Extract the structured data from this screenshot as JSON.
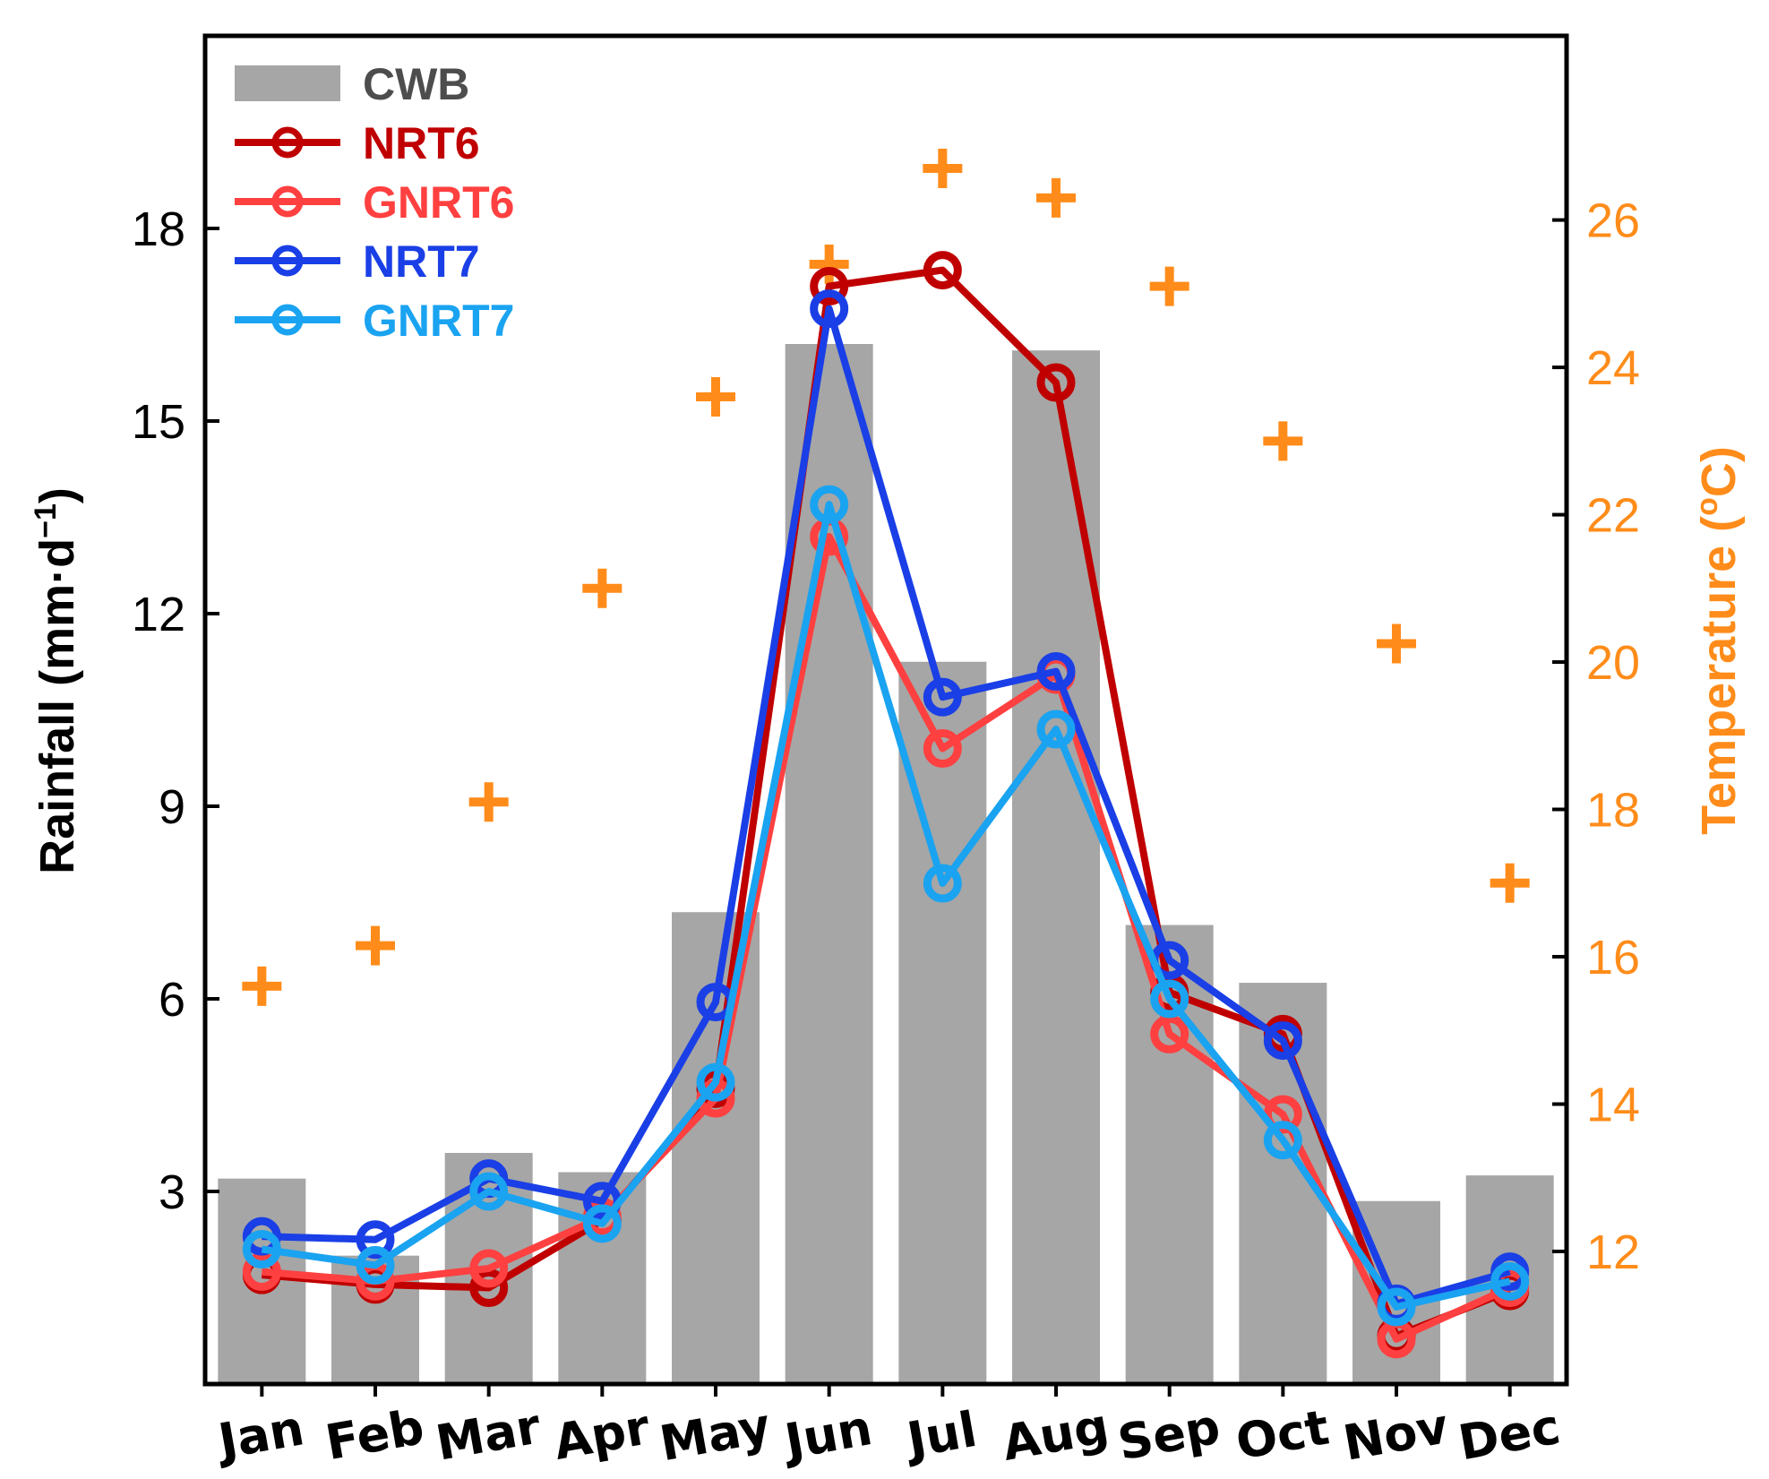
{
  "chart_data": {
    "type": "bar",
    "categories": [
      "Jan",
      "Feb",
      "Mar",
      "Apr",
      "May",
      "Jun",
      "Jul",
      "Aug",
      "Sep",
      "Oct",
      "Nov",
      "Dec"
    ],
    "ylabel": "Rainfall (mm·d",
    "ylabel_sup": "−1",
    "ylabel_close": ")",
    "ylabel_right": "Temperature (",
    "ylabel_right_sup": "o",
    "ylabel_right_close": "C)",
    "ylim": [
      0,
      21
    ],
    "ylim_right": [
      10.2,
      28.5
    ],
    "yticks": [
      3,
      6,
      9,
      12,
      15,
      18
    ],
    "yticks_right": [
      12,
      14,
      16,
      18,
      20,
      22,
      24,
      26
    ],
    "bars": {
      "name": "CWB",
      "color": "#a6a6a6",
      "values": [
        3.2,
        2.0,
        3.6,
        3.3,
        7.35,
        16.2,
        11.25,
        16.1,
        7.15,
        6.25,
        2.85,
        3.25
      ]
    },
    "series": [
      {
        "name": "NRT6",
        "color": "#c00000",
        "values": [
          1.7,
          1.55,
          1.5,
          2.55,
          4.6,
          17.1,
          17.35,
          15.6,
          6.1,
          5.45,
          0.75,
          1.45
        ]
      },
      {
        "name": "GNRT6",
        "color": "#ff4040",
        "values": [
          1.75,
          1.6,
          1.8,
          2.6,
          4.45,
          13.2,
          9.9,
          11.05,
          5.45,
          4.2,
          0.7,
          1.5
        ]
      },
      {
        "name": "NRT7",
        "color": "#1a3fe6",
        "values": [
          2.3,
          2.25,
          3.2,
          2.85,
          5.95,
          16.75,
          10.7,
          11.1,
          6.6,
          5.35,
          1.25,
          1.75
        ]
      },
      {
        "name": "GNRT7",
        "color": "#1aa3f0",
        "values": [
          2.1,
          1.85,
          3.0,
          2.5,
          4.7,
          13.7,
          7.8,
          10.2,
          6.0,
          3.8,
          1.2,
          1.6
        ]
      }
    ],
    "temperature": {
      "name": "Temperature",
      "color": "#ff8c1a",
      "marker": "+",
      "values": [
        15.6,
        16.15,
        18.1,
        21.0,
        23.6,
        25.4,
        26.7,
        26.3,
        25.1,
        23.0,
        20.25,
        17.0
      ]
    }
  }
}
